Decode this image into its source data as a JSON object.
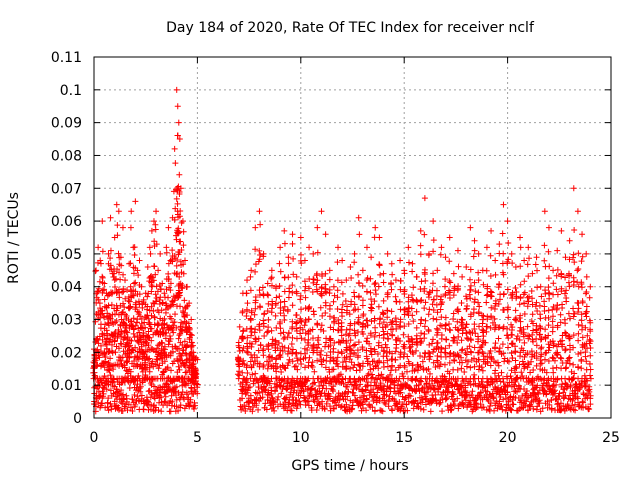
{
  "chart_data": {
    "type": "scatter",
    "title": "Day 184 of 2020, Rate Of TEC Index for receiver nclf",
    "xlabel": "GPS time / hours",
    "ylabel": "ROTI / TECUs",
    "xlim": [
      0,
      25
    ],
    "ylim": [
      0,
      0.11
    ],
    "x_ticks": [
      "0",
      "5",
      "10",
      "15",
      "20",
      "25"
    ],
    "y_ticks": [
      "0",
      "0.01",
      "0.02",
      "0.03",
      "0.04",
      "0.05",
      "0.06",
      "0.07",
      "0.08",
      "0.09",
      "0.1",
      "0.11"
    ],
    "grid": true,
    "marker": "+",
    "color": "#ff0000",
    "series": [
      {
        "x": [
          0.0,
          0.1,
          0.2,
          0.3,
          0.4,
          0.5,
          0.6,
          0.7,
          0.8,
          0.9,
          1.0,
          1.1,
          1.2,
          1.3,
          1.4,
          1.5,
          1.6,
          1.7,
          1.8,
          1.9,
          2.0,
          2.1,
          2.2,
          2.3,
          2.4,
          2.5,
          2.6,
          2.7,
          2.8,
          2.9,
          3.0,
          3.1,
          3.2,
          3.3,
          3.4,
          3.5,
          3.6,
          3.7,
          3.8,
          3.9,
          4.0,
          4.05,
          4.1,
          4.15,
          4.2,
          4.3,
          4.4,
          4.5,
          4.6,
          4.7,
          4.8,
          4.9,
          7.0,
          7.2,
          7.4,
          7.6,
          7.8,
          8.0,
          8.2,
          8.4,
          8.6,
          8.8,
          9.0,
          9.2,
          9.4,
          9.6,
          9.8,
          10.0,
          10.2,
          10.4,
          10.6,
          10.8,
          11.0,
          11.2,
          11.4,
          11.6,
          11.8,
          12.0,
          12.2,
          12.4,
          12.6,
          12.8,
          13.0,
          13.2,
          13.4,
          13.6,
          13.8,
          14.0,
          14.2,
          14.4,
          14.6,
          14.8,
          15.0,
          15.2,
          15.4,
          15.6,
          15.8,
          16.0,
          16.2,
          16.4,
          16.6,
          16.8,
          17.0,
          17.2,
          17.4,
          17.6,
          17.8,
          18.0,
          18.2,
          18.4,
          18.6,
          18.8,
          19.0,
          19.2,
          19.4,
          19.6,
          19.8,
          20.0,
          20.2,
          20.4,
          20.6,
          20.8,
          21.0,
          21.2,
          21.4,
          21.6,
          21.8,
          22.0,
          22.2,
          22.4,
          22.6,
          22.8,
          23.0,
          23.2,
          23.4,
          23.6,
          23.8,
          24.0
        ],
        "y": [
          0.021,
          0.045,
          0.052,
          0.048,
          0.06,
          0.041,
          0.038,
          0.05,
          0.061,
          0.044,
          0.055,
          0.065,
          0.063,
          0.049,
          0.058,
          0.042,
          0.039,
          0.047,
          0.063,
          0.052,
          0.066,
          0.045,
          0.048,
          0.04,
          0.036,
          0.038,
          0.046,
          0.052,
          0.057,
          0.06,
          0.063,
          0.045,
          0.05,
          0.041,
          0.038,
          0.052,
          0.058,
          0.048,
          0.061,
          0.082,
          0.1,
          0.095,
          0.09,
          0.085,
          0.07,
          0.06,
          0.048,
          0.04,
          0.035,
          0.03,
          0.02,
          0.015,
          0.023,
          0.038,
          0.042,
          0.045,
          0.058,
          0.063,
          0.05,
          0.041,
          0.045,
          0.04,
          0.052,
          0.057,
          0.049,
          0.056,
          0.043,
          0.055,
          0.048,
          0.052,
          0.05,
          0.058,
          0.063,
          0.056,
          0.045,
          0.04,
          0.052,
          0.048,
          0.042,
          0.046,
          0.05,
          0.061,
          0.045,
          0.052,
          0.049,
          0.058,
          0.055,
          0.044,
          0.05,
          0.047,
          0.042,
          0.048,
          0.045,
          0.052,
          0.047,
          0.043,
          0.057,
          0.067,
          0.05,
          0.06,
          0.045,
          0.052,
          0.049,
          0.055,
          0.044,
          0.051,
          0.043,
          0.046,
          0.058,
          0.054,
          0.05,
          0.045,
          0.052,
          0.057,
          0.048,
          0.053,
          0.065,
          0.06,
          0.05,
          0.046,
          0.055,
          0.048,
          0.052,
          0.044,
          0.049,
          0.04,
          0.063,
          0.058,
          0.045,
          0.051,
          0.057,
          0.049,
          0.054,
          0.07,
          0.063,
          0.056,
          0.05,
          0.04
        ]
      }
    ],
    "base_band_y": [
      0.002,
      0.012
    ],
    "data_gap_x": [
      5.0,
      7.0
    ]
  }
}
